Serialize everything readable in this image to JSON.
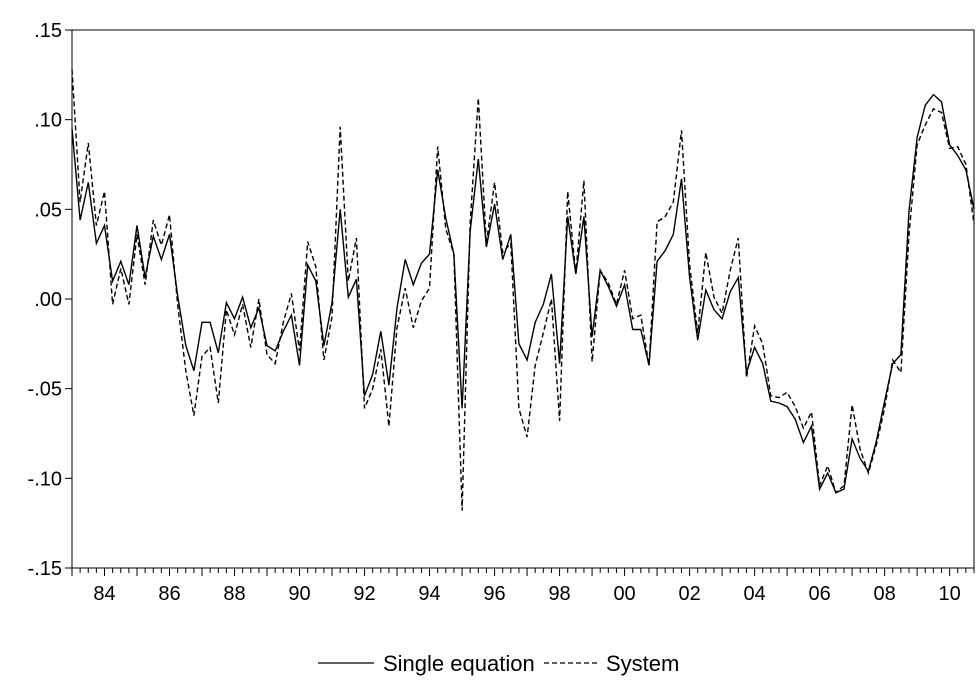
{
  "chart_data": {
    "type": "line",
    "title": "",
    "xlabel": "",
    "ylabel": "",
    "x_start": 1983.0,
    "x_step": 0.25,
    "xlim": [
      1983.0,
      2010.75
    ],
    "ylim": [
      -0.15,
      0.15
    ],
    "x_ticks": [
      {
        "value": 1984,
        "label": "84"
      },
      {
        "value": 1986,
        "label": "86"
      },
      {
        "value": 1988,
        "label": "88"
      },
      {
        "value": 1990,
        "label": "90"
      },
      {
        "value": 1992,
        "label": "92"
      },
      {
        "value": 1994,
        "label": "94"
      },
      {
        "value": 1996,
        "label": "96"
      },
      {
        "value": 1998,
        "label": "98"
      },
      {
        "value": 2000,
        "label": "00"
      },
      {
        "value": 2002,
        "label": "02"
      },
      {
        "value": 2004,
        "label": "04"
      },
      {
        "value": 2006,
        "label": "06"
      },
      {
        "value": 2008,
        "label": "08"
      },
      {
        "value": 2010,
        "label": "10"
      }
    ],
    "y_ticks": [
      {
        "value": 0.15,
        "label": ".15"
      },
      {
        "value": 0.1,
        "label": ".10"
      },
      {
        "value": 0.05,
        "label": ".05"
      },
      {
        "value": 0.0,
        "label": ".00"
      },
      {
        "value": -0.05,
        "label": "-.05"
      },
      {
        "value": -0.1,
        "label": "-.10"
      },
      {
        "value": -0.15,
        "label": "-.15"
      }
    ],
    "grid": false,
    "legend_position": "bottom",
    "series": [
      {
        "name": "Single equation",
        "style": "solid",
        "color": "#000000",
        "values": [
          0.095,
          0.044,
          0.065,
          0.031,
          0.041,
          0.01,
          0.021,
          0.008,
          0.041,
          0.012,
          0.035,
          0.022,
          0.036,
          0.002,
          -0.026,
          -0.04,
          -0.013,
          -0.013,
          -0.03,
          -0.002,
          -0.011,
          0.001,
          -0.016,
          -0.005,
          -0.026,
          -0.029,
          -0.018,
          -0.009,
          -0.037,
          0.019,
          0.01,
          -0.026,
          -0.002,
          0.05,
          0.001,
          0.011,
          -0.054,
          -0.042,
          -0.018,
          -0.048,
          -0.005,
          0.022,
          0.008,
          0.02,
          0.025,
          0.072,
          0.045,
          0.025,
          -0.061,
          0.038,
          0.078,
          0.029,
          0.053,
          0.022,
          0.036,
          -0.025,
          -0.034,
          -0.013,
          -0.003,
          0.014,
          -0.036,
          0.046,
          0.014,
          0.046,
          -0.021,
          0.016,
          0.007,
          -0.004,
          0.008,
          -0.017,
          -0.017,
          -0.037,
          0.021,
          0.027,
          0.036,
          0.067,
          0.012,
          -0.023,
          0.005,
          -0.006,
          -0.011,
          0.004,
          0.012,
          -0.041,
          -0.027,
          -0.036,
          -0.057,
          -0.058,
          -0.06,
          -0.067,
          -0.08,
          -0.071,
          -0.106,
          -0.097,
          -0.108,
          -0.106,
          -0.078,
          -0.089,
          -0.096,
          -0.079,
          -0.057,
          -0.036,
          -0.031,
          0.049,
          0.09,
          0.108,
          0.114,
          0.11,
          0.086,
          0.08,
          0.072,
          0.05
        ]
      },
      {
        "name": "System",
        "style": "dashed",
        "color": "#000000",
        "values": [
          0.128,
          0.054,
          0.087,
          0.041,
          0.06,
          -0.003,
          0.017,
          -0.003,
          0.036,
          0.008,
          0.044,
          0.03,
          0.047,
          -0.003,
          -0.04,
          -0.065,
          -0.032,
          -0.027,
          -0.058,
          -0.006,
          -0.02,
          -0.003,
          -0.027,
          0.0,
          -0.031,
          -0.036,
          -0.013,
          0.003,
          -0.029,
          0.032,
          0.018,
          -0.034,
          -0.01,
          0.096,
          0.01,
          0.034,
          -0.061,
          -0.05,
          -0.028,
          -0.071,
          -0.016,
          0.006,
          -0.016,
          -0.001,
          0.006,
          0.085,
          0.039,
          0.025,
          -0.118,
          0.043,
          0.112,
          0.031,
          0.065,
          0.026,
          0.031,
          -0.061,
          -0.077,
          -0.037,
          -0.019,
          0.0,
          -0.068,
          0.06,
          0.014,
          0.066,
          -0.035,
          0.016,
          0.009,
          -0.003,
          0.016,
          -0.011,
          -0.009,
          -0.037,
          0.043,
          0.046,
          0.054,
          0.094,
          0.019,
          -0.019,
          0.026,
          0.001,
          -0.008,
          0.016,
          0.034,
          -0.044,
          -0.015,
          -0.025,
          -0.054,
          -0.055,
          -0.052,
          -0.06,
          -0.072,
          -0.063,
          -0.104,
          -0.093,
          -0.108,
          -0.104,
          -0.059,
          -0.084,
          -0.097,
          -0.081,
          -0.061,
          -0.034,
          -0.041,
          0.036,
          0.086,
          0.097,
          0.106,
          0.104,
          0.084,
          0.085,
          0.075,
          0.042
        ]
      }
    ]
  }
}
